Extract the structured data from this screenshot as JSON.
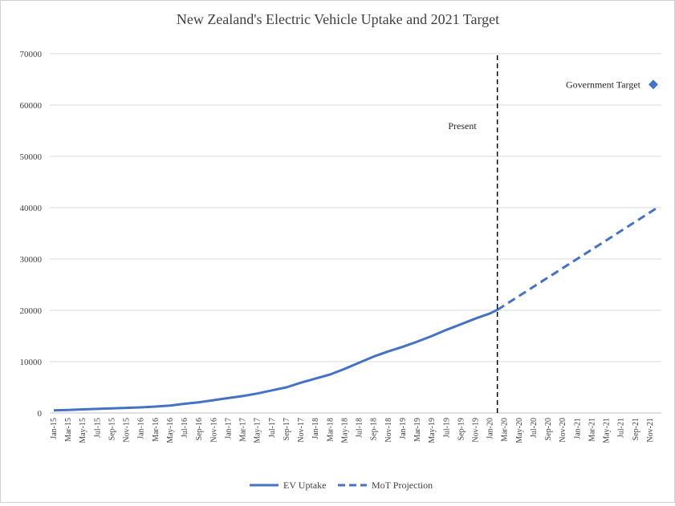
{
  "chart_data": {
    "type": "line",
    "title": "New Zealand's Electric Vehicle Uptake and 2021 Target",
    "ylim": [
      0,
      70000
    ],
    "yticks": [
      0,
      10000,
      20000,
      30000,
      40000,
      50000,
      60000,
      70000
    ],
    "x_tick_labels": [
      "Jan-15",
      "Mar-15",
      "May-15",
      "Jul-15",
      "Sep-15",
      "Nov-15",
      "Jan-16",
      "Mar-16",
      "May-16",
      "Jul-16",
      "Sep-16",
      "Nov-16",
      "Jan-17",
      "Mar-17",
      "May-17",
      "Jul-17",
      "Sep-17",
      "Nov-17",
      "Jan-18",
      "Mar-18",
      "May-18",
      "Jul-18",
      "Sep-18",
      "Nov-18",
      "Jan-19",
      "Mar-19",
      "May-19",
      "Jul-19",
      "Sep-19",
      "Nov-19",
      "Jan-20",
      "Mar-20",
      "May-20",
      "Jul-20",
      "Sep-20",
      "Nov-20",
      "Jan-21",
      "Mar-21",
      "May-21",
      "Jul-21",
      "Sep-21",
      "Nov-21"
    ],
    "series": [
      {
        "name": "EV Uptake",
        "color": "#4472C4",
        "style": "solid",
        "x": [
          "Jan-15",
          "Mar-15",
          "May-15",
          "Jul-15",
          "Sep-15",
          "Nov-15",
          "Jan-16",
          "Mar-16",
          "May-16",
          "Jul-16",
          "Sep-16",
          "Nov-16",
          "Jan-17",
          "Mar-17",
          "May-17",
          "Jul-17",
          "Sep-17",
          "Nov-17",
          "Jan-18",
          "Mar-18",
          "May-18",
          "Jul-18",
          "Sep-18",
          "Nov-18",
          "Jan-19",
          "Mar-19",
          "May-19",
          "Jul-19",
          "Sep-19",
          "Nov-19",
          "Jan-20",
          "Feb-20"
        ],
        "values": [
          500,
          600,
          700,
          800,
          900,
          1000,
          1100,
          1250,
          1450,
          1800,
          2100,
          2500,
          2900,
          3300,
          3800,
          4400,
          5000,
          5900,
          6700,
          7500,
          8600,
          9800,
          11000,
          12000,
          12900,
          13900,
          15000,
          16200,
          17300,
          18400,
          19400,
          20100
        ]
      },
      {
        "name": "MoT Projection",
        "color": "#4472C4",
        "style": "dashed",
        "x": [
          "Feb-20",
          "Dec-21"
        ],
        "values": [
          20100,
          40000
        ]
      }
    ],
    "target": {
      "label": "Government Target",
      "x": "Dec-21",
      "value": 64000,
      "color": "#4472C4"
    },
    "present_line": {
      "label": "Present",
      "x": "Feb-20"
    },
    "legend": {
      "position": "bottom",
      "entries": [
        "EV Uptake",
        "MoT Projection"
      ]
    },
    "grid": true
  }
}
